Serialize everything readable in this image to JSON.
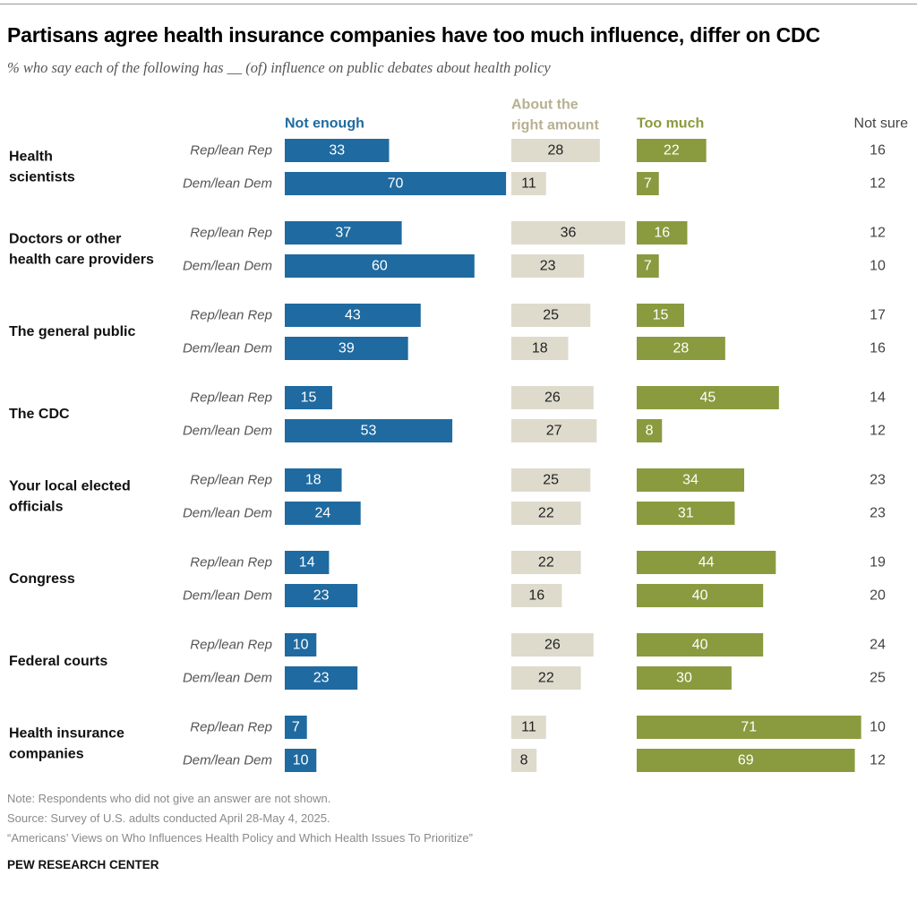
{
  "title": "Partisans agree health insurance companies have too much influence, differ on CDC",
  "subtitle": "% who say each of the following has __ (of) influence on public debates about health policy",
  "notes": [
    "Note: Respondents who did not give an answer are not shown.",
    "Source: Survey of U.S. adults conducted April 28-May 4, 2025.",
    "“Americans’ Views on Who Influences Health Policy and Which Health Issues To Prioritize”"
  ],
  "brand": "PEW RESEARCH CENTER",
  "colors": {
    "not_enough": "#1f6aa0",
    "right_amount": "#dedbcd",
    "too_much": "#8a9a3e",
    "right_amount_header": "#b8b091"
  },
  "chart_data": {
    "type": "bar",
    "orientation": "horizontal",
    "layout": "diverging-columns",
    "title": "Partisans agree health insurance companies have too much influence, differ on CDC",
    "columns": [
      {
        "key": "not_enough",
        "label": "Not enough"
      },
      {
        "key": "right_amount",
        "label_lines": [
          "About the",
          "right amount"
        ]
      },
      {
        "key": "too_much",
        "label": "Too much"
      },
      {
        "key": "not_sure",
        "label": "Not sure"
      }
    ],
    "categories": [
      {
        "name_lines": [
          "Health",
          "scientists"
        ],
        "rows": [
          {
            "group": "Rep/lean Rep",
            "not_enough": 33,
            "right_amount": 28,
            "too_much": 22,
            "not_sure": 16
          },
          {
            "group": "Dem/lean Dem",
            "not_enough": 70,
            "right_amount": 11,
            "too_much": 7,
            "not_sure": 12
          }
        ]
      },
      {
        "name_lines": [
          "Doctors or other",
          "health care providers"
        ],
        "rows": [
          {
            "group": "Rep/lean Rep",
            "not_enough": 37,
            "right_amount": 36,
            "too_much": 16,
            "not_sure": 12
          },
          {
            "group": "Dem/lean Dem",
            "not_enough": 60,
            "right_amount": 23,
            "too_much": 7,
            "not_sure": 10
          }
        ]
      },
      {
        "name_lines": [
          "The general public"
        ],
        "rows": [
          {
            "group": "Rep/lean Rep",
            "not_enough": 43,
            "right_amount": 25,
            "too_much": 15,
            "not_sure": 17
          },
          {
            "group": "Dem/lean Dem",
            "not_enough": 39,
            "right_amount": 18,
            "too_much": 28,
            "not_sure": 16
          }
        ]
      },
      {
        "name_lines": [
          "The CDC"
        ],
        "rows": [
          {
            "group": "Rep/lean Rep",
            "not_enough": 15,
            "right_amount": 26,
            "too_much": 45,
            "not_sure": 14
          },
          {
            "group": "Dem/lean Dem",
            "not_enough": 53,
            "right_amount": 27,
            "too_much": 8,
            "not_sure": 12
          }
        ]
      },
      {
        "name_lines": [
          "Your local elected",
          "officials"
        ],
        "rows": [
          {
            "group": "Rep/lean Rep",
            "not_enough": 18,
            "right_amount": 25,
            "too_much": 34,
            "not_sure": 23
          },
          {
            "group": "Dem/lean Dem",
            "not_enough": 24,
            "right_amount": 22,
            "too_much": 31,
            "not_sure": 23
          }
        ]
      },
      {
        "name_lines": [
          "Congress"
        ],
        "rows": [
          {
            "group": "Rep/lean Rep",
            "not_enough": 14,
            "right_amount": 22,
            "too_much": 44,
            "not_sure": 19
          },
          {
            "group": "Dem/lean Dem",
            "not_enough": 23,
            "right_amount": 16,
            "too_much": 40,
            "not_sure": 20
          }
        ]
      },
      {
        "name_lines": [
          "Federal courts"
        ],
        "rows": [
          {
            "group": "Rep/lean Rep",
            "not_enough": 10,
            "right_amount": 26,
            "too_much": 40,
            "not_sure": 24
          },
          {
            "group": "Dem/lean Dem",
            "not_enough": 23,
            "right_amount": 22,
            "too_much": 30,
            "not_sure": 25
          }
        ]
      },
      {
        "name_lines": [
          "Health insurance",
          "companies"
        ],
        "rows": [
          {
            "group": "Rep/lean Rep",
            "not_enough": 7,
            "right_amount": 11,
            "too_much": 71,
            "not_sure": 10
          },
          {
            "group": "Dem/lean Dem",
            "not_enough": 10,
            "right_amount": 8,
            "too_much": 69,
            "not_sure": 12
          }
        ]
      }
    ]
  }
}
